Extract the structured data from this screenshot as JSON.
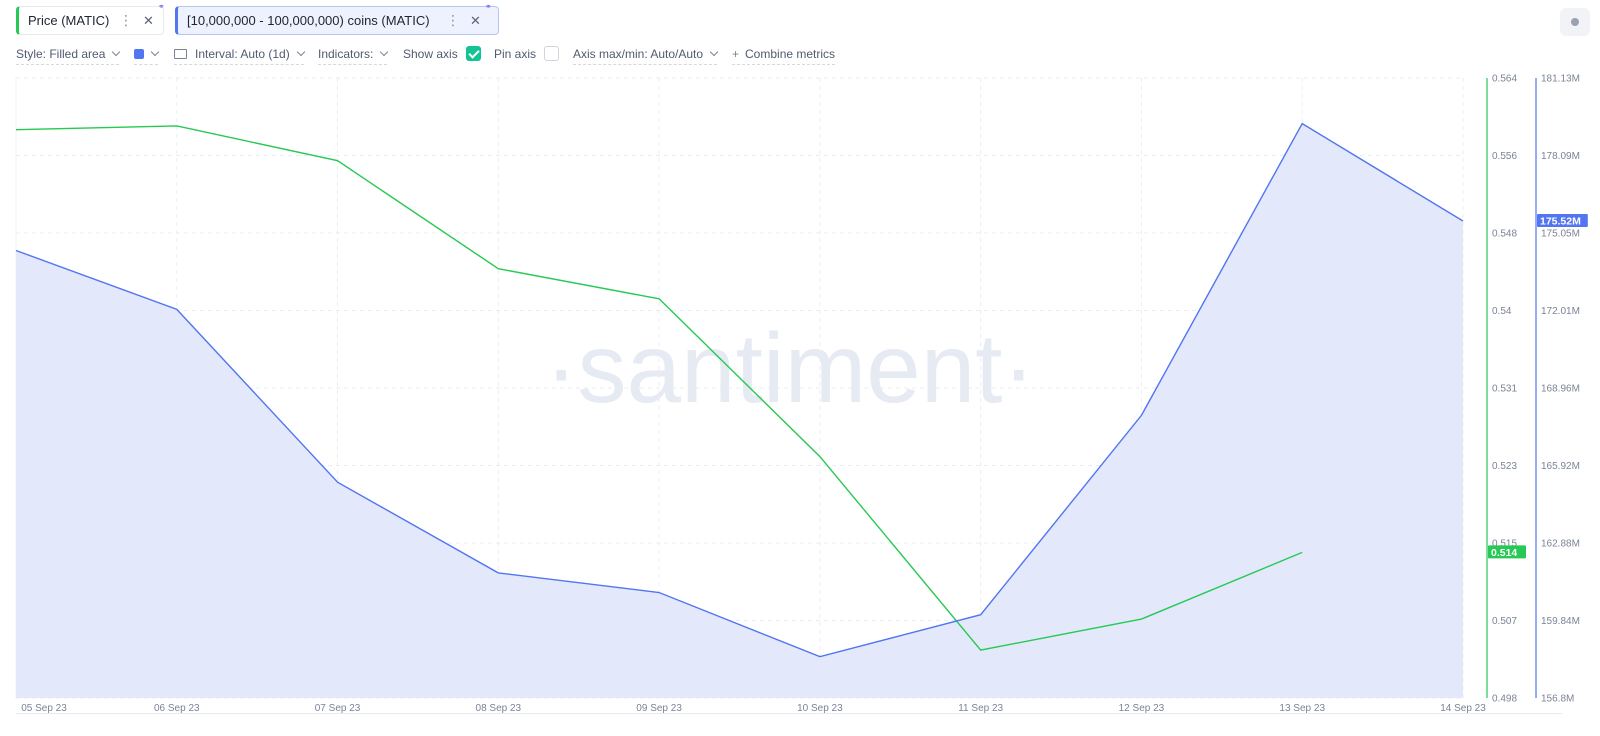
{
  "tabs": [
    {
      "label": "Price (MATIC)",
      "color": "#26c953"
    },
    {
      "label": "[10,000,000 - 100,000,000) coins (MATIC)",
      "color": "#5275f0"
    }
  ],
  "settings": {
    "style": "Style: Filled area",
    "interval": "Interval: Auto (1d)",
    "indicators": "Indicators:",
    "show_axis": "Show axis",
    "pin_axis": "Pin axis",
    "axis_maxmin": "Axis max/min: Auto/Auto",
    "combine": "Combine metrics"
  },
  "chart_data": {
    "type": "line",
    "watermark": "·santiment·",
    "categories": [
      "05 Sep 23",
      "06 Sep 23",
      "07 Sep 23",
      "08 Sep 23",
      "09 Sep 23",
      "10 Sep 23",
      "11 Sep 23",
      "12 Sep 23",
      "13 Sep 23",
      "14 Sep 23"
    ],
    "series": [
      {
        "name": "Price (MATIC)",
        "style": "line",
        "color": "#26c953",
        "axis": "left-axis",
        "ylim": [
          0.498,
          0.564
        ],
        "ticks": [
          "0.564",
          "0.556",
          "0.548",
          "0.54",
          "0.531",
          "0.523",
          "0.515",
          "0.507",
          "0.498"
        ],
        "last_label": "0.514",
        "values": [
          0.5585,
          0.5589,
          0.5552,
          0.5437,
          0.5405,
          0.5237,
          0.5031,
          0.5064,
          0.5135,
          null
        ]
      },
      {
        "name": "[10,000,000 - 100,000,000) coins (MATIC)",
        "style": "filled-area",
        "color": "#5275f0",
        "fill": "#e3e8fb",
        "axis": "right-axis",
        "ylim": [
          156.8,
          181.13
        ],
        "ticks": [
          "181.13M",
          "178.09M",
          "175.05M",
          "172.01M",
          "168.96M",
          "165.92M",
          "162.88M",
          "159.84M",
          "156.8M"
        ],
        "last_label": "175.52M",
        "values": [
          174.36,
          172.05,
          165.27,
          161.71,
          160.94,
          158.42,
          160.07,
          167.89,
          179.34,
          175.52
        ]
      }
    ],
    "grid": true,
    "legend": "top-left"
  }
}
